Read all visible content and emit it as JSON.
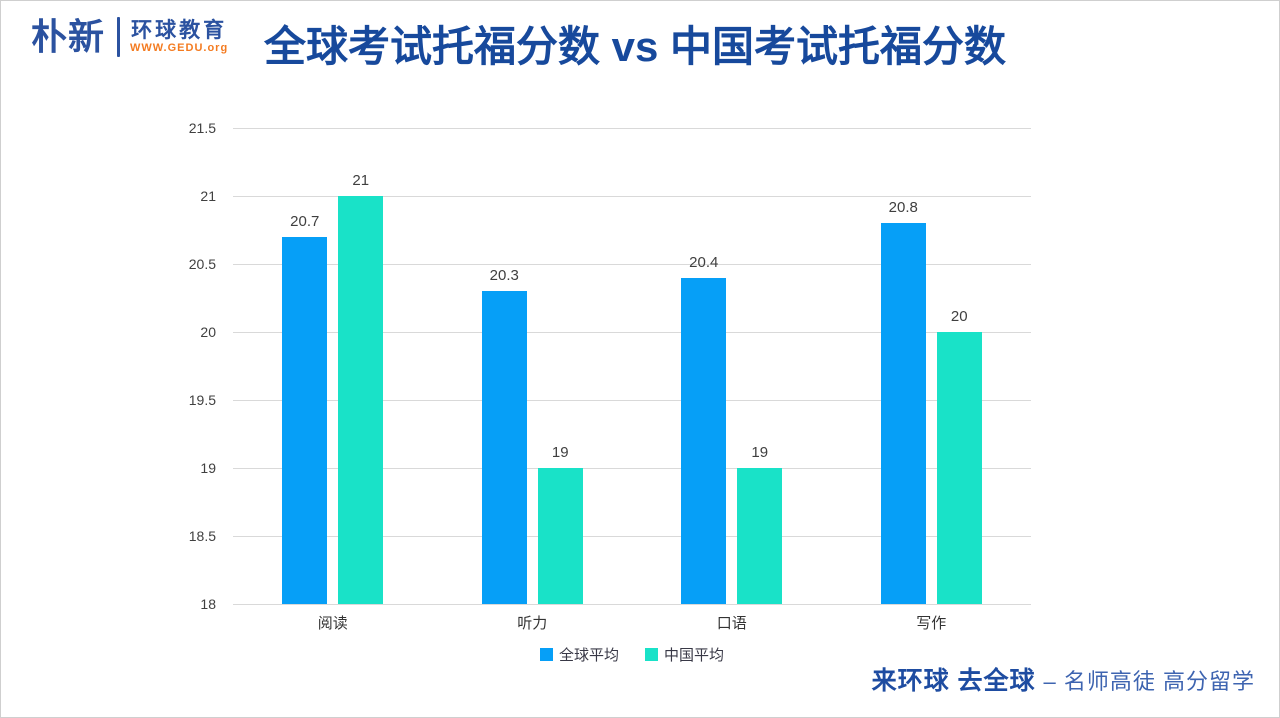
{
  "header": {
    "logo": {
      "brand": "朴新",
      "sub_brand": "环球教育",
      "website": "WWW.GEDU.org"
    },
    "title": "全球考试托福分数 vs 中国考试托福分数"
  },
  "chart_data": {
    "type": "bar",
    "title": "全球考试托福分数 vs 中国考试托福分数",
    "categories": [
      "阅读",
      "听力",
      "口语",
      "写作"
    ],
    "series": [
      {
        "name": "全球平均",
        "color": "#069ff7",
        "values": [
          20.7,
          20.3,
          20.4,
          20.8
        ],
        "labels": [
          "20.7",
          "20.3",
          "20.4",
          "20.8"
        ]
      },
      {
        "name": "中国平均",
        "color": "#19e2c8",
        "values": [
          21,
          19,
          19,
          20
        ],
        "labels": [
          "21",
          "19",
          "19",
          "20"
        ]
      }
    ],
    "xlabel": "",
    "ylabel": "",
    "ylim": [
      18,
      21.5
    ],
    "yticks": [
      21.5,
      21,
      20.5,
      20,
      19.5,
      19,
      18.5,
      18
    ],
    "grid": true,
    "legend_position": "bottom",
    "colors": {
      "gridline": "#d9d9d9",
      "tick_text": "#404040",
      "label_text": "#3f3f3f"
    }
  },
  "footer": {
    "tagline_bold": "来环球 去全球",
    "tagline_light": "– 名师高徒 高分留学"
  }
}
